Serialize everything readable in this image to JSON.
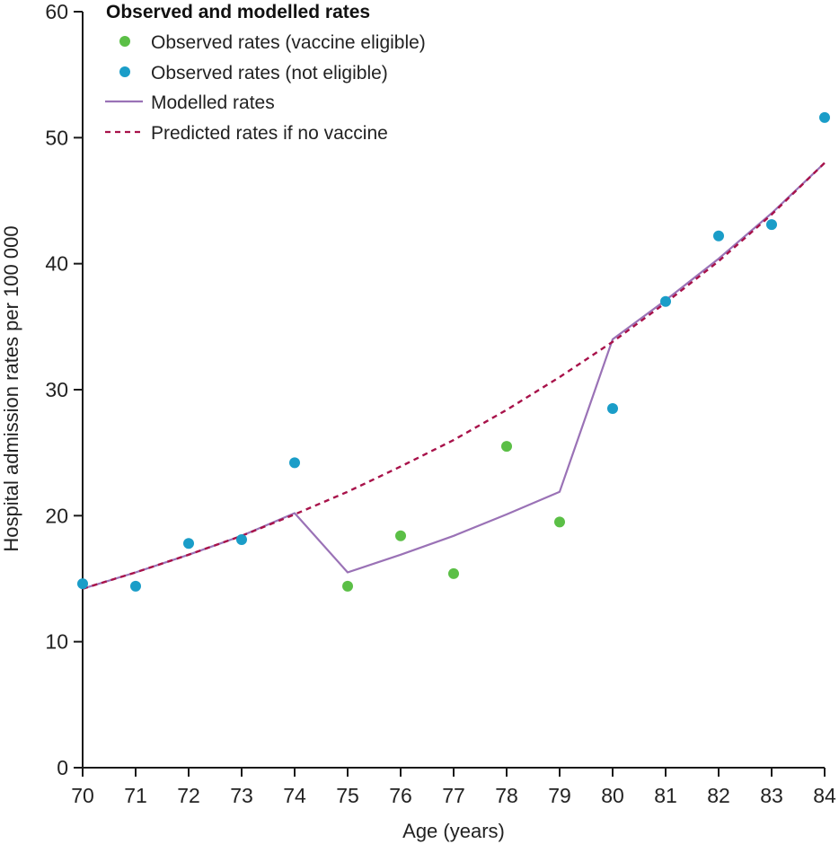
{
  "chart_data": {
    "type": "scatter",
    "xlabel": "Age (years)",
    "ylabel": "Hospital admission rates per 100 000",
    "xlim": [
      70,
      84
    ],
    "ylim": [
      0,
      60
    ],
    "x_ticks": [
      "70",
      "71",
      "72",
      "73",
      "74",
      "75",
      "76",
      "77",
      "78",
      "79",
      "80",
      "81",
      "82",
      "83",
      "84"
    ],
    "y_ticks": [
      "0",
      "10",
      "20",
      "30",
      "40",
      "50",
      "60"
    ],
    "grid": false,
    "legend": {
      "title": "Observed and modelled rates",
      "placement": "top-left",
      "items": [
        {
          "label": "Observed rates (vaccine eligible)",
          "kind": "marker",
          "color": "#5bbf46"
        },
        {
          "label": "Observed rates (not eligible)",
          "kind": "marker",
          "color": "#1a9dc8"
        },
        {
          "label": "Modelled rates",
          "kind": "line",
          "color": "#9a72b6"
        },
        {
          "label": "Predicted rates if no vaccine",
          "kind": "dashed",
          "color": "#a8124a"
        }
      ]
    },
    "series": [
      {
        "name": "Observed rates (vaccine eligible)",
        "type": "scatter",
        "color": "#5bbf46",
        "x": [
          75,
          76,
          77,
          78,
          79
        ],
        "y": [
          14.4,
          18.4,
          15.4,
          25.5,
          19.5
        ]
      },
      {
        "name": "Observed rates (not eligible)",
        "type": "scatter",
        "color": "#1a9dc8",
        "x": [
          70,
          71,
          72,
          73,
          74,
          80,
          81,
          82,
          83,
          84
        ],
        "y": [
          14.6,
          14.4,
          17.8,
          18.1,
          24.2,
          28.5,
          37.0,
          42.2,
          43.1,
          51.6
        ]
      },
      {
        "name": "Modelled rates",
        "type": "line",
        "color": "#9a72b6",
        "x": [
          70,
          71,
          72,
          73,
          74,
          75,
          76,
          77,
          78,
          79,
          80,
          81,
          82,
          83,
          84
        ],
        "y": [
          14.2,
          15.5,
          16.9,
          18.4,
          20.2,
          15.5,
          16.9,
          18.4,
          20.1,
          21.9,
          34.0,
          37.1,
          40.4,
          44.0,
          48.0
        ]
      },
      {
        "name": "Predicted rates if no vaccine",
        "type": "dashed",
        "color": "#a8124a",
        "x": [
          70,
          71,
          72,
          73,
          74,
          75,
          76,
          77,
          78,
          79,
          80,
          81,
          82,
          83,
          84
        ],
        "y": [
          14.2,
          15.5,
          16.9,
          18.4,
          20.1,
          21.9,
          23.9,
          26.0,
          28.4,
          31.0,
          33.8,
          36.9,
          40.2,
          43.9,
          48.0
        ]
      }
    ]
  }
}
